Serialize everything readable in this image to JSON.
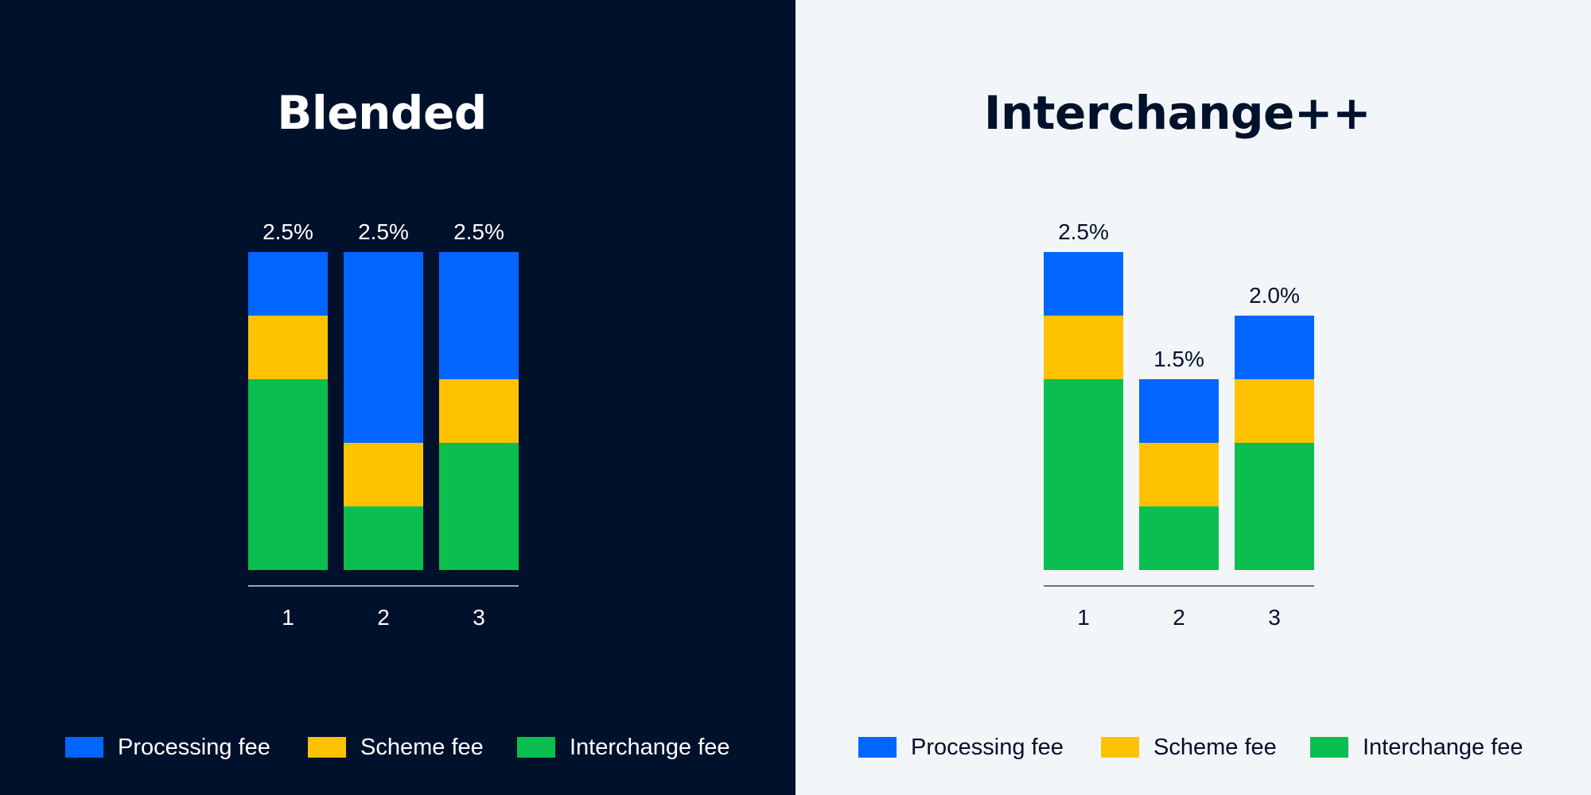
{
  "colors": {
    "processing": "#0066FF",
    "scheme": "#FFC200",
    "interchange": "#0ABF50",
    "dark_bg": "#00112C",
    "light_bg": "#F3F6F9",
    "dark_text": "#FFFFFF",
    "light_text": "#00112C",
    "axis_dark": "#9AA3B2",
    "axis_light": "#6B7280"
  },
  "panels": [
    {
      "title": "Blended",
      "legend": [
        {
          "label": "Processing fee",
          "color_key": "processing"
        },
        {
          "label": "Scheme fee",
          "color_key": "scheme"
        },
        {
          "label": "Interchange fee",
          "color_key": "interchange"
        }
      ]
    },
    {
      "title": "Interchange++",
      "legend": [
        {
          "label": "Processing fee",
          "color_key": "processing"
        },
        {
          "label": "Scheme fee",
          "color_key": "scheme"
        },
        {
          "label": "Interchange fee",
          "color_key": "interchange"
        }
      ]
    }
  ],
  "chart_data": [
    {
      "type": "bar",
      "stacked": true,
      "title": "Blended",
      "categories": [
        "1",
        "2",
        "3"
      ],
      "series": [
        {
          "name": "Interchange fee",
          "color_key": "interchange",
          "values": [
            1.5,
            0.5,
            1.0
          ]
        },
        {
          "name": "Scheme fee",
          "color_key": "scheme",
          "values": [
            0.5,
            0.5,
            0.5
          ]
        },
        {
          "name": "Processing fee",
          "color_key": "processing",
          "values": [
            0.5,
            1.5,
            1.0
          ]
        }
      ],
      "total_labels": [
        "2.5%",
        "2.5%",
        "2.5%"
      ],
      "ylim": [
        0,
        2.5
      ],
      "grid": false,
      "legend_position": "bottom"
    },
    {
      "type": "bar",
      "stacked": true,
      "title": "Interchange++",
      "categories": [
        "1",
        "2",
        "3"
      ],
      "series": [
        {
          "name": "Interchange fee",
          "color_key": "interchange",
          "values": [
            1.5,
            0.5,
            1.0
          ]
        },
        {
          "name": "Scheme fee",
          "color_key": "scheme",
          "values": [
            0.5,
            0.5,
            0.5
          ]
        },
        {
          "name": "Processing fee",
          "color_key": "processing",
          "values": [
            0.5,
            0.5,
            0.5
          ]
        }
      ],
      "total_labels": [
        "2.5%",
        "1.5%",
        "2.0%"
      ],
      "ylim": [
        0,
        2.5
      ],
      "grid": false,
      "legend_position": "bottom"
    }
  ]
}
